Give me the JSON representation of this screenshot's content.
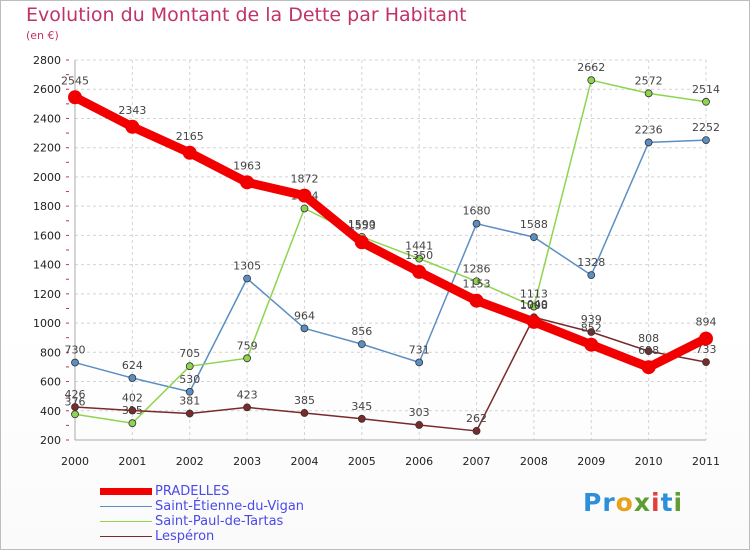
{
  "title": "Evolution du Montant de la Dette par Habitant",
  "unit": "(en €)",
  "logo": {
    "letters": [
      "P",
      "r",
      "o",
      "x",
      "i",
      "t",
      "i"
    ],
    "colors": [
      "#2e8fd9",
      "#2e8fd9",
      "#e8a11a",
      "#5c9e31",
      "#e24040",
      "#2e8fd9",
      "#5c9e31"
    ]
  },
  "chart_data": {
    "type": "line",
    "x": [
      "2000",
      "2001",
      "2002",
      "2003",
      "2004",
      "2005",
      "2006",
      "2007",
      "2008",
      "2009",
      "2010",
      "2011"
    ],
    "y_ticks": [
      "200",
      "400",
      "600",
      "800",
      "1000",
      "1200",
      "1400",
      "1600",
      "1800",
      "2000",
      "2200",
      "2400",
      "2600",
      "2800"
    ],
    "ylim": [
      200,
      2800
    ],
    "grid": true,
    "legend_position": "bottom-left",
    "series": [
      {
        "name": "Saint-Étienne-du-Vigan",
        "color": "#5b8ec2",
        "values": [
          730,
          624,
          530,
          1305,
          964,
          856,
          731,
          1680,
          1588,
          1328,
          2236,
          2252
        ],
        "labels": [
          "730",
          "624",
          "530",
          "1305",
          "964",
          "856",
          "731",
          "1680",
          "1588",
          "1328",
          "2236",
          "2252"
        ]
      },
      {
        "name": "Saint-Paul-de-Tartas",
        "color": "#8fd44e",
        "values": [
          376,
          315,
          705,
          759,
          1784,
          1590,
          1441,
          1286,
          1113,
          2662,
          2572,
          2514
        ],
        "labels": [
          "376",
          "315",
          "705",
          "759",
          "1784",
          "1590",
          "1441",
          "1286",
          "1113",
          "2662",
          "2572",
          "2514"
        ]
      },
      {
        "name": "Lespéron",
        "color": "#7a2a2a",
        "values": [
          426,
          402,
          381,
          423,
          385,
          345,
          303,
          262,
          1040,
          939,
          808,
          733
        ],
        "labels": [
          "426",
          "402",
          "381",
          "423",
          "385",
          "345",
          "303",
          "262",
          "1040",
          "939",
          "808",
          "733"
        ]
      },
      {
        "name": "PRADELLES",
        "color": "#f20000",
        "values": [
          2545,
          2343,
          2165,
          1963,
          1872,
          1553,
          1350,
          1153,
          1008,
          852,
          698,
          894
        ],
        "labels": [
          "2545",
          "2343",
          "2165",
          "1963",
          "1872",
          "1553",
          "1350",
          "1153",
          "1008",
          "852",
          "698",
          "894"
        ]
      }
    ],
    "legend": [
      {
        "name": "PRADELLES",
        "color": "#f20000",
        "width": 7
      },
      {
        "name": "Saint-Étienne-du-Vigan",
        "color": "#5b8ec2",
        "width": 1
      },
      {
        "name": "Saint-Paul-de-Tartas",
        "color": "#8fd44e",
        "width": 1
      },
      {
        "name": "Lespéron",
        "color": "#7a2a2a",
        "width": 1
      }
    ]
  }
}
